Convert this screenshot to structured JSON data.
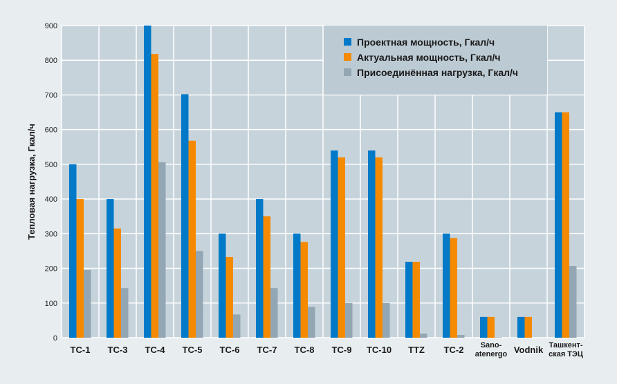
{
  "chart_data": {
    "type": "bar",
    "title": "",
    "xlabel": "",
    "ylabel": "Тепловая нагрузка, Гкал/ч",
    "ylim": [
      0,
      900
    ],
    "yticks": [
      0,
      100,
      200,
      300,
      400,
      500,
      600,
      700,
      800,
      900
    ],
    "grid": true,
    "legend_position": "top-right",
    "categories": [
      [
        "TC-1"
      ],
      [
        "TC-3"
      ],
      [
        "TC-4"
      ],
      [
        "TC-5"
      ],
      [
        "TC-6"
      ],
      [
        "TC-7"
      ],
      [
        "TC-8"
      ],
      [
        "TC-9"
      ],
      [
        "TC-10"
      ],
      [
        "TTZ"
      ],
      [
        "TC-2"
      ],
      [
        "Sano-",
        "atenergo"
      ],
      [
        "Vodnik"
      ],
      [
        "Ташкент-",
        "ская ТЭЦ"
      ]
    ],
    "series": [
      {
        "name": "Проектная мощность, Гкал/ч",
        "color": "#0079c8",
        "values": [
          500,
          400,
          900,
          702,
          300,
          400,
          300,
          540,
          540,
          219,
          300,
          60,
          60,
          650
        ]
      },
      {
        "name": "Актуальная мощность, Гкал/ч",
        "color": "#f58a00",
        "values": [
          400,
          315,
          818,
          568,
          233,
          350,
          276,
          520,
          520,
          219,
          287,
          60,
          60,
          650
        ]
      },
      {
        "name": "Присоединённая нагрузка, Гкал/ч",
        "color": "#93a6b3",
        "values": [
          195,
          143,
          506,
          250,
          67,
          143,
          89,
          100,
          100,
          12,
          8,
          1,
          0,
          207
        ]
      }
    ]
  }
}
